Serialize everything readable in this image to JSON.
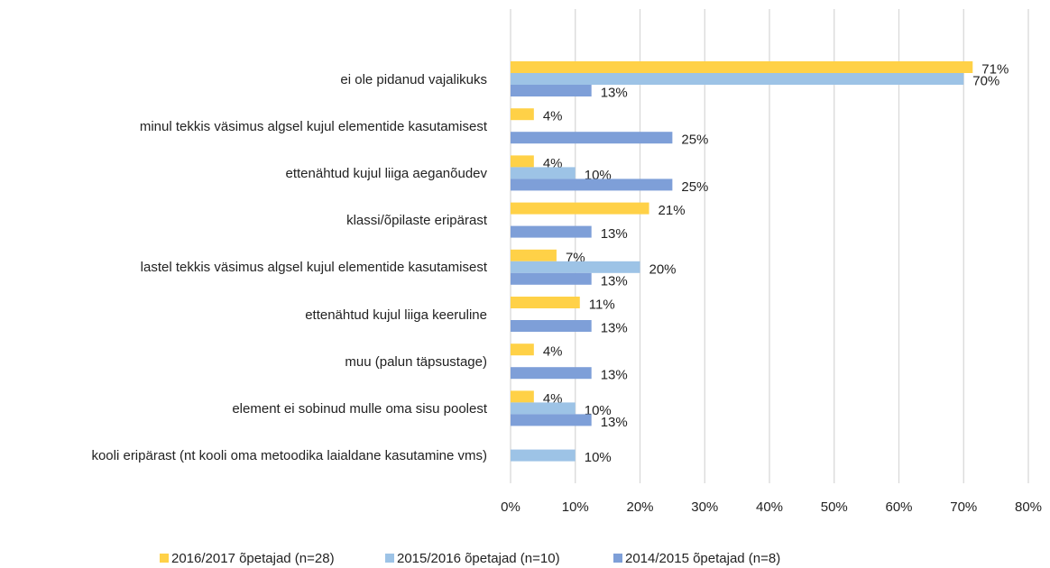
{
  "chart_data": {
    "type": "hbar",
    "categories": [
      "ei ole pidanud vajalikuks",
      "minul tekkis väsimus algsel kujul elementide kasutamisest",
      "ettenähtud  kujul liiga aeganõudev",
      "klassi/õpilaste eripärast",
      "lastel tekkis väsimus algsel kujul elementide kasutamisest",
      "ettenähtud  kujul liiga keeruline",
      "muu (palun täpsustage)",
      "element ei sobinud mulle oma sisu poolest",
      "kooli eripärast (nt kooli oma metoodika laialdane kasutamine vms)"
    ],
    "series": [
      {
        "name": "2016/2017 õpetajad (n=28)",
        "color": "#FFD147",
        "values": [
          71.4,
          3.6,
          3.6,
          21.4,
          7.1,
          10.7,
          3.6,
          3.6,
          null
        ],
        "value_labels": [
          "71%",
          "4%",
          "4%",
          "21%",
          "7%",
          "11%",
          "4%",
          "4%",
          null
        ]
      },
      {
        "name": "2015/2016 õpetajad (n=10)",
        "color": "#9DC3E6",
        "values": [
          70,
          null,
          10,
          null,
          20,
          null,
          null,
          10,
          10
        ],
        "value_labels": [
          "70%",
          null,
          "10%",
          null,
          "20%",
          null,
          null,
          "10%",
          "10%"
        ]
      },
      {
        "name": "2014/2015 õpetajad (n=8)",
        "color": "#7E9FD8",
        "values": [
          12.5,
          25,
          25,
          12.5,
          12.5,
          12.5,
          12.5,
          12.5,
          null
        ],
        "value_labels": [
          "13%",
          "25%",
          "25%",
          "13%",
          "13%",
          "13%",
          "13%",
          "13%",
          null
        ]
      }
    ],
    "xlim": [
      0,
      80
    ],
    "xticks": [
      {
        "value": 0,
        "label": "0%"
      },
      {
        "value": 10,
        "label": "10%"
      },
      {
        "value": 20,
        "label": "20%"
      },
      {
        "value": 30,
        "label": "30%"
      },
      {
        "value": 40,
        "label": "40%"
      },
      {
        "value": 50,
        "label": "50%"
      },
      {
        "value": 60,
        "label": "60%"
      },
      {
        "value": 70,
        "label": "70%"
      },
      {
        "value": 80,
        "label": "80%"
      }
    ],
    "grid": true,
    "legend": "bottom"
  }
}
